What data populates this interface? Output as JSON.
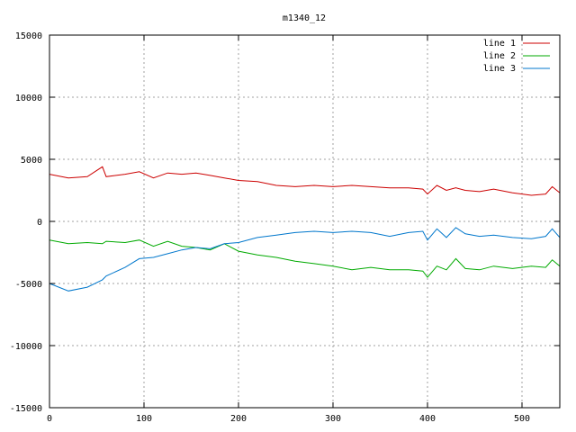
{
  "chart_data": {
    "type": "line",
    "title": "m1340_12",
    "xlabel": "",
    "ylabel": "",
    "xlim": [
      0,
      540
    ],
    "ylim": [
      -15000,
      15000
    ],
    "xticks": [
      0,
      100,
      200,
      300,
      400,
      500
    ],
    "yticks": [
      -15000,
      -10000,
      -5000,
      0,
      5000,
      10000,
      15000
    ],
    "xtick_labels": [
      "0",
      "100",
      "200",
      "300",
      "400",
      "500"
    ],
    "ytick_labels": [
      "-15000",
      "-10000",
      "-5000",
      "0",
      "5000",
      "10000",
      "15000"
    ],
    "grid": true,
    "legend": "top-right",
    "x": [
      0,
      20,
      40,
      56,
      60,
      80,
      95,
      110,
      125,
      140,
      155,
      170,
      185,
      200,
      220,
      240,
      260,
      280,
      300,
      320,
      340,
      360,
      380,
      395,
      400,
      410,
      420,
      430,
      440,
      455,
      470,
      490,
      510,
      525,
      532,
      540
    ],
    "series": [
      {
        "name": "line 1",
        "color": "#cc0000",
        "values": [
          3800,
          3500,
          3600,
          4400,
          3600,
          3800,
          4000,
          3500,
          3900,
          3800,
          3900,
          3700,
          3500,
          3300,
          3200,
          2900,
          2800,
          2900,
          2800,
          2900,
          2800,
          2700,
          2700,
          2600,
          2200,
          2900,
          2500,
          2700,
          2500,
          2400,
          2600,
          2300,
          2100,
          2200,
          2800,
          2300
        ]
      },
      {
        "name": "line 2",
        "color": "#00aa00",
        "values": [
          -1500,
          -1800,
          -1700,
          -1800,
          -1600,
          -1700,
          -1500,
          -2000,
          -1600,
          -2000,
          -2100,
          -2300,
          -1800,
          -2400,
          -2700,
          -2900,
          -3200,
          -3400,
          -3600,
          -3900,
          -3700,
          -3900,
          -3900,
          -4000,
          -4500,
          -3600,
          -3900,
          -3000,
          -3800,
          -3900,
          -3600,
          -3800,
          -3600,
          -3700,
          -3100,
          -3600
        ]
      },
      {
        "name": "line 3",
        "color": "#0077cc",
        "values": [
          -5000,
          -5600,
          -5300,
          -4700,
          -4400,
          -3700,
          -3000,
          -2900,
          -2600,
          -2300,
          -2100,
          -2200,
          -1800,
          -1700,
          -1300,
          -1100,
          -900,
          -800,
          -900,
          -800,
          -900,
          -1200,
          -900,
          -800,
          -1500,
          -600,
          -1300,
          -500,
          -1000,
          -1200,
          -1100,
          -1300,
          -1400,
          -1200,
          -600,
          -1300
        ]
      }
    ]
  }
}
